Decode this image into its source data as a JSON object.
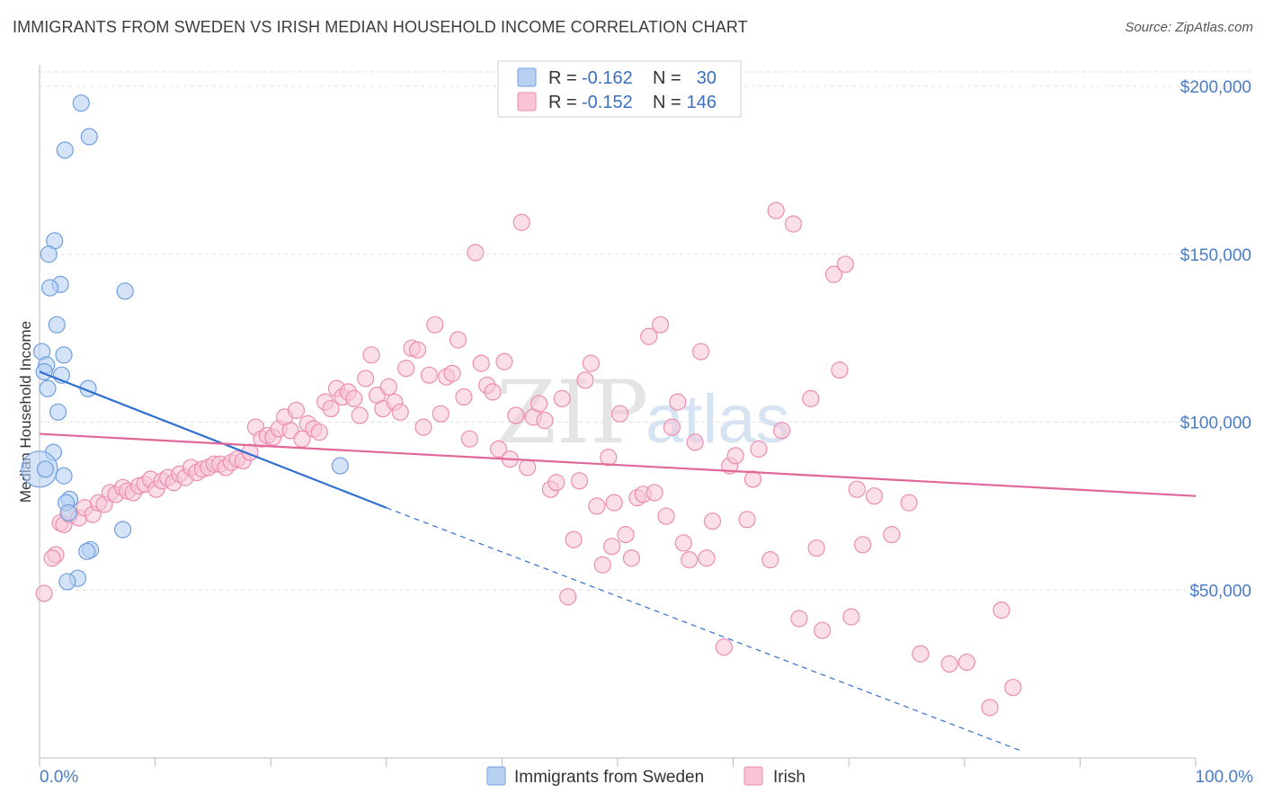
{
  "title": "IMMIGRANTS FROM SWEDEN VS IRISH MEDIAN HOUSEHOLD INCOME CORRELATION CHART",
  "source": "Source: ZipAtlas.com",
  "watermark": {
    "zip": "ZIP",
    "atlas": "atlas"
  },
  "colors": {
    "sweden_fill": "#b7d0f2",
    "sweden_stroke": "#6f9fe0",
    "sweden_line": "#2f6fd0",
    "irish_fill": "#f8c4d6",
    "irish_stroke": "#ec8db0",
    "irish_line": "#e0679a",
    "tick_color": "#4a7cc4",
    "grid": "#e2e2e2"
  },
  "legend": {
    "rows": [
      {
        "r_label": "R =",
        "r_value": "-0.162",
        "n_label": "N =",
        "n_value": "30"
      },
      {
        "r_label": "R =",
        "r_value": "-0.152",
        "n_label": "N =",
        "n_value": "146"
      }
    ]
  },
  "chart_data": {
    "type": "scatter",
    "xlabel": "",
    "ylabel": "Median Household Income",
    "xlim": [
      0,
      100
    ],
    "ylim": [
      0,
      205000
    ],
    "x_tick_labels": [
      "0.0%",
      "100.0%"
    ],
    "y_ticks": [
      50000,
      100000,
      150000,
      200000
    ],
    "y_tick_labels": [
      "$50,000",
      "$100,000",
      "$150,000",
      "$200,000"
    ],
    "grid": "horizontal dashed",
    "legend_position": "top-center",
    "series": [
      {
        "name": "Immigrants from Sweden",
        "r": -0.162,
        "n": 30,
        "trend": {
          "x0": 0,
          "y0": 115000,
          "x1_solid": 30,
          "y1_solid": 74500,
          "x1_dash": 85,
          "y1_dash": 2000
        },
        "points": [
          [
            3.6,
            195000
          ],
          [
            4.3,
            185000
          ],
          [
            2.2,
            181000
          ],
          [
            1.3,
            154000
          ],
          [
            0.8,
            150000
          ],
          [
            1.8,
            141000
          ],
          [
            0.9,
            140000
          ],
          [
            7.4,
            139000
          ],
          [
            1.5,
            129000
          ],
          [
            0.2,
            121000
          ],
          [
            2.1,
            120000
          ],
          [
            0.6,
            117000
          ],
          [
            0.4,
            115000
          ],
          [
            1.9,
            114000
          ],
          [
            4.2,
            110000
          ],
          [
            0.7,
            110000
          ],
          [
            1.6,
            103000
          ],
          [
            1.2,
            91000
          ],
          [
            0,
            86000
          ],
          [
            26,
            87000
          ],
          [
            2.1,
            84000
          ],
          [
            2.6,
            77000
          ],
          [
            2.3,
            76000
          ],
          [
            2.5,
            73000
          ],
          [
            7.2,
            68000
          ],
          [
            4.4,
            62000
          ],
          [
            4.1,
            61500
          ],
          [
            3.3,
            53500
          ],
          [
            2.4,
            52500
          ],
          [
            0.5,
            86000
          ]
        ]
      },
      {
        "name": "Irish",
        "r": -0.152,
        "n": 146,
        "trend": {
          "x0": 0,
          "y0": 96500,
          "x1": 100,
          "y1": 78000
        },
        "points": [
          [
            0.4,
            49000
          ],
          [
            1.4,
            60500
          ],
          [
            1.1,
            59500
          ],
          [
            1.8,
            70000
          ],
          [
            2.1,
            69500
          ],
          [
            2.6,
            72500
          ],
          [
            3.4,
            71500
          ],
          [
            3.9,
            74500
          ],
          [
            4.6,
            72500
          ],
          [
            5.1,
            76000
          ],
          [
            5.6,
            75500
          ],
          [
            6.1,
            79000
          ],
          [
            6.6,
            78500
          ],
          [
            7.2,
            80500
          ],
          [
            7.6,
            79500
          ],
          [
            8.1,
            79000
          ],
          [
            8.6,
            81000
          ],
          [
            9.1,
            81500
          ],
          [
            9.6,
            83000
          ],
          [
            10.1,
            80000
          ],
          [
            10.6,
            82500
          ],
          [
            11.1,
            83500
          ],
          [
            11.6,
            82000
          ],
          [
            12.1,
            84500
          ],
          [
            12.6,
            83500
          ],
          [
            13.1,
            86500
          ],
          [
            13.6,
            85000
          ],
          [
            14.1,
            86000
          ],
          [
            14.6,
            86500
          ],
          [
            15.1,
            87500
          ],
          [
            15.6,
            87500
          ],
          [
            16.1,
            86500
          ],
          [
            16.6,
            88000
          ],
          [
            17.1,
            89000
          ],
          [
            17.6,
            88500
          ],
          [
            18.2,
            91000
          ],
          [
            18.7,
            98500
          ],
          [
            19.2,
            95000
          ],
          [
            19.7,
            96000
          ],
          [
            20.2,
            95500
          ],
          [
            20.7,
            98000
          ],
          [
            21.2,
            101500
          ],
          [
            21.7,
            97500
          ],
          [
            22.2,
            103500
          ],
          [
            22.7,
            95000
          ],
          [
            23.2,
            99500
          ],
          [
            23.7,
            98000
          ],
          [
            24.2,
            97000
          ],
          [
            24.7,
            106000
          ],
          [
            25.2,
            104000
          ],
          [
            25.7,
            110000
          ],
          [
            26.2,
            107500
          ],
          [
            26.7,
            109000
          ],
          [
            27.2,
            107000
          ],
          [
            27.7,
            102000
          ],
          [
            28.2,
            113000
          ],
          [
            28.7,
            120000
          ],
          [
            29.2,
            108000
          ],
          [
            29.7,
            104000
          ],
          [
            30.2,
            110500
          ],
          [
            30.7,
            106000
          ],
          [
            31.2,
            103000
          ],
          [
            31.7,
            116000
          ],
          [
            32.2,
            122000
          ],
          [
            32.7,
            121500
          ],
          [
            33.2,
            98500
          ],
          [
            33.7,
            114000
          ],
          [
            34.2,
            129000
          ],
          [
            34.7,
            102500
          ],
          [
            35.2,
            113500
          ],
          [
            35.7,
            114500
          ],
          [
            36.2,
            124500
          ],
          [
            36.7,
            107500
          ],
          [
            37.2,
            95000
          ],
          [
            37.7,
            150500
          ],
          [
            38.2,
            117500
          ],
          [
            38.7,
            111000
          ],
          [
            39.2,
            109000
          ],
          [
            39.7,
            92000
          ],
          [
            40.2,
            118000
          ],
          [
            40.7,
            89000
          ],
          [
            41.2,
            102000
          ],
          [
            41.7,
            159500
          ],
          [
            42.2,
            86500
          ],
          [
            42.7,
            101500
          ],
          [
            43.2,
            105500
          ],
          [
            43.7,
            100500
          ],
          [
            44.2,
            80000
          ],
          [
            44.7,
            82000
          ],
          [
            45.2,
            107000
          ],
          [
            45.7,
            48000
          ],
          [
            46.2,
            65000
          ],
          [
            46.7,
            82500
          ],
          [
            47.2,
            112500
          ],
          [
            47.7,
            117500
          ],
          [
            48.2,
            75000
          ],
          [
            48.7,
            57500
          ],
          [
            49.2,
            89500
          ],
          [
            49.7,
            76000
          ],
          [
            50.2,
            102500
          ],
          [
            50.7,
            66500
          ],
          [
            51.2,
            59500
          ],
          [
            51.7,
            77500
          ],
          [
            52.2,
            78500
          ],
          [
            52.7,
            125500
          ],
          [
            53.2,
            79000
          ],
          [
            53.7,
            129000
          ],
          [
            54.2,
            72000
          ],
          [
            54.7,
            98500
          ],
          [
            55.2,
            106000
          ],
          [
            55.7,
            64000
          ],
          [
            56.2,
            59000
          ],
          [
            56.7,
            94000
          ],
          [
            57.2,
            121000
          ],
          [
            57.7,
            59500
          ],
          [
            58.2,
            70500
          ],
          [
            59.2,
            33000
          ],
          [
            59.7,
            87000
          ],
          [
            60.2,
            90000
          ],
          [
            61.2,
            71000
          ],
          [
            61.7,
            83000
          ],
          [
            62.2,
            92000
          ],
          [
            63.2,
            59000
          ],
          [
            63.7,
            163000
          ],
          [
            64.2,
            97500
          ],
          [
            65.2,
            159000
          ],
          [
            65.7,
            41500
          ],
          [
            66.7,
            107000
          ],
          [
            67.2,
            62500
          ],
          [
            67.7,
            38000
          ],
          [
            68.7,
            144000
          ],
          [
            69.2,
            115500
          ],
          [
            69.7,
            147000
          ],
          [
            70.2,
            42000
          ],
          [
            70.7,
            80000
          ],
          [
            71.2,
            63500
          ],
          [
            72.2,
            78000
          ],
          [
            73.7,
            66500
          ],
          [
            75.2,
            76000
          ],
          [
            76.2,
            31000
          ],
          [
            78.7,
            28000
          ],
          [
            80.2,
            28500
          ],
          [
            82.2,
            15000
          ],
          [
            83.2,
            44000
          ],
          [
            84.2,
            21000
          ],
          [
            49.5,
            63000
          ]
        ]
      }
    ]
  }
}
